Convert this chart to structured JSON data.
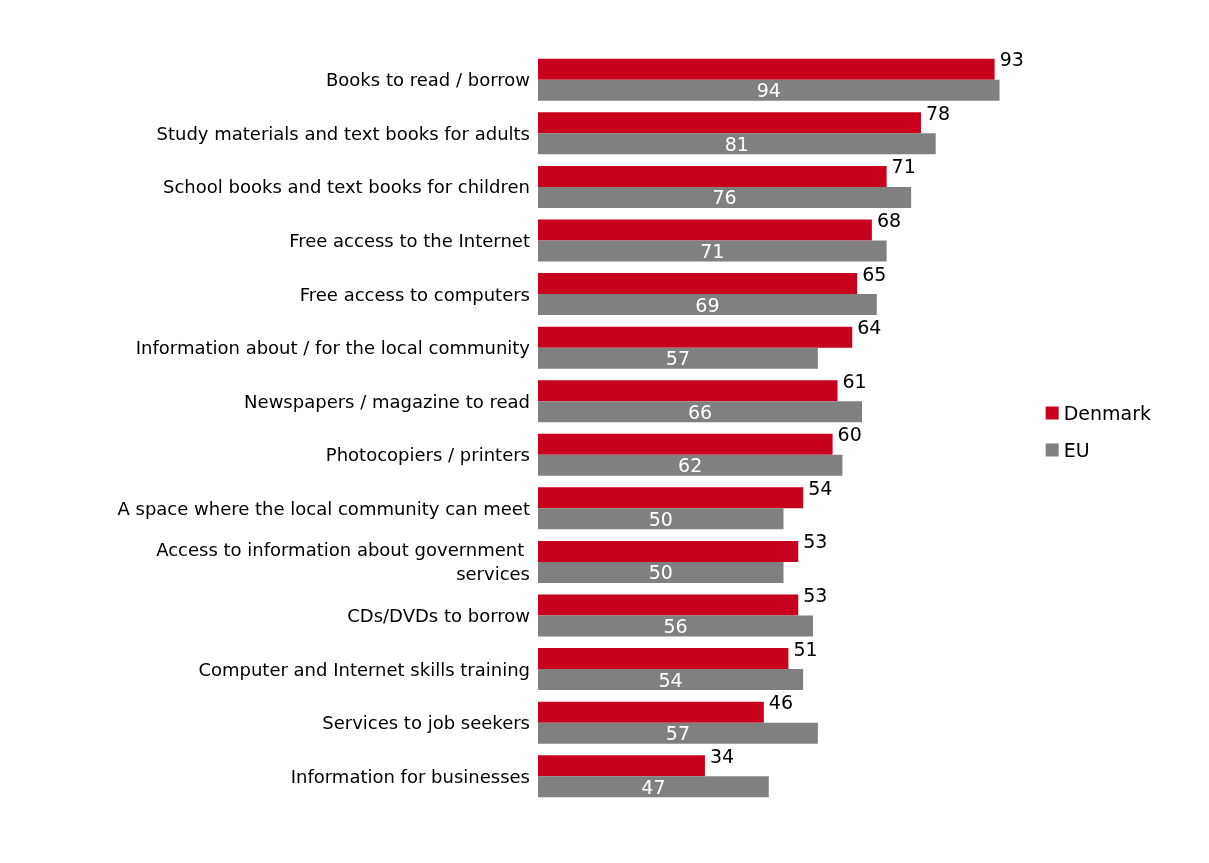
{
  "chart_data": {
    "type": "bar",
    "orientation": "horizontal",
    "categories": [
      "Books to read / borrow",
      "Study materials and text books for adults",
      "School books and text books for children",
      "Free access to the Internet",
      "Free access to computers",
      "Information about / for the local community",
      "Newspapers / magazine to read",
      "Photocopiers / printers",
      "A space where the local community can meet",
      "Access to information about government services",
      "CDs/DVDs to borrow",
      "Computer and Internet skills training",
      "Services to job seekers",
      "Information for businesses"
    ],
    "series": [
      {
        "name": "Denmark",
        "color": "#c8001e",
        "values": [
          93,
          78,
          71,
          68,
          65,
          64,
          61,
          60,
          54,
          53,
          53,
          51,
          46,
          34
        ]
      },
      {
        "name": "EU",
        "color": "#808080",
        "values": [
          94,
          81,
          76,
          71,
          69,
          57,
          66,
          62,
          50,
          50,
          56,
          54,
          57,
          47
        ]
      }
    ],
    "data_labels": true,
    "legend": "right"
  }
}
